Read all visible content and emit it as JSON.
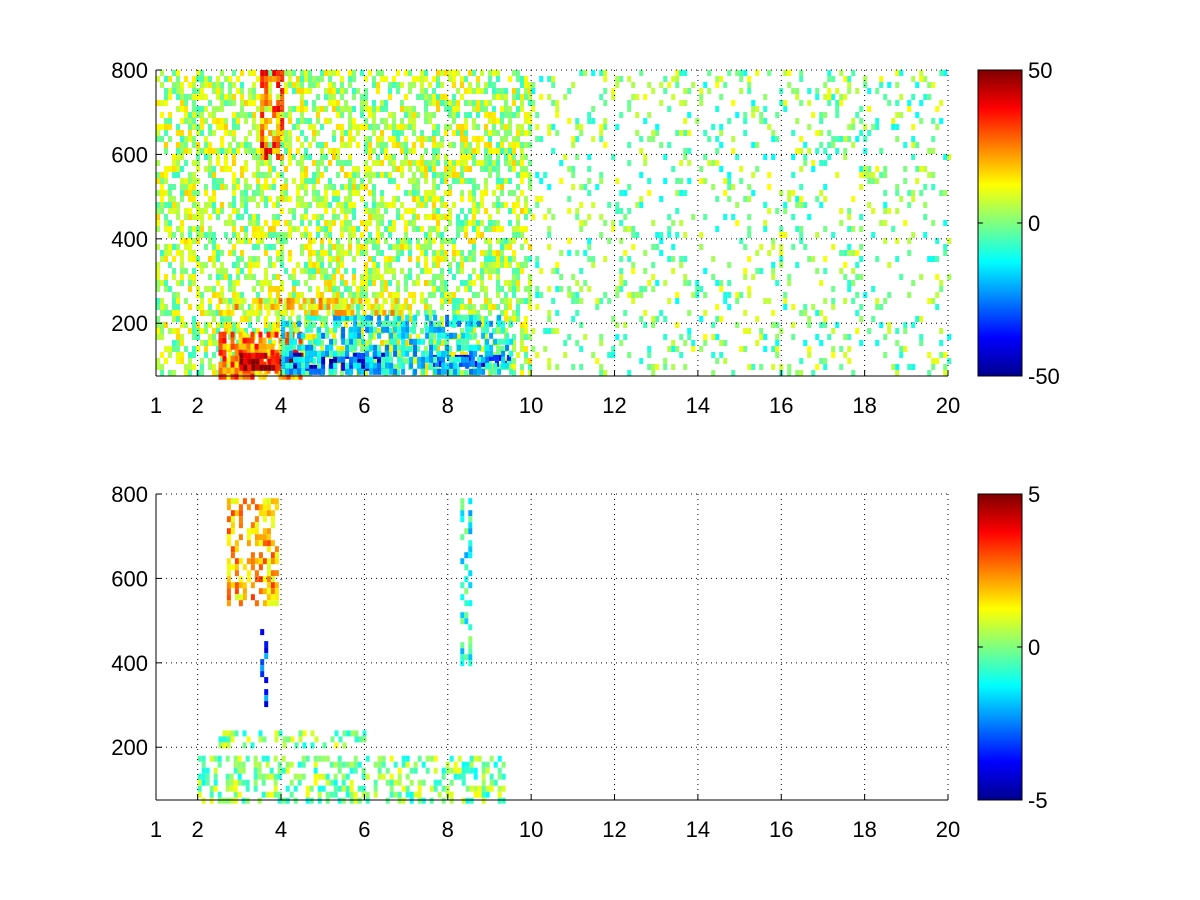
{
  "chart_data": [
    {
      "type": "heatmap",
      "title": "",
      "xlabel": "",
      "ylabel": "",
      "x_scale": "linear",
      "xlim": [
        1,
        20
      ],
      "ylim": [
        75,
        800
      ],
      "x_ticks": [
        1,
        2,
        4,
        6,
        8,
        10,
        12,
        14,
        16,
        18,
        20
      ],
      "x_tick_labels": [
        "1",
        "2",
        "4",
        "6",
        "8",
        "10",
        "12",
        "14",
        "16",
        "18",
        "20"
      ],
      "y_ticks": [
        200,
        400,
        600,
        800
      ],
      "y_tick_labels": [
        "200",
        "400",
        "600",
        "800"
      ],
      "grid": true,
      "colormap": "jet",
      "colorbar": {
        "range": [
          -50,
          50
        ],
        "ticks": [
          -50,
          0,
          50
        ],
        "tick_labels": [
          "-50",
          "0",
          "50"
        ]
      },
      "features": [
        {
          "x": [
            1,
            10
          ],
          "y": [
            75,
            800
          ],
          "value": 5,
          "density": 0.55
        },
        {
          "x": [
            2.5,
            4.5
          ],
          "y": [
            80,
            180
          ],
          "value": 25,
          "density": 0.8
        },
        {
          "x": [
            3,
            4.5
          ],
          "y": [
            95,
            130
          ],
          "value": 45,
          "density": 0.9
        },
        {
          "x": [
            4,
            6.5
          ],
          "y": [
            100,
            130
          ],
          "value": -40,
          "density": 0.7
        },
        {
          "x": [
            7.5,
            9.5
          ],
          "y": [
            100,
            125
          ],
          "value": -35,
          "density": 0.7
        },
        {
          "x": [
            4,
            9.5
          ],
          "y": [
            80,
            220
          ],
          "value": -15,
          "density": 0.55
        },
        {
          "x": [
            2.5,
            7
          ],
          "y": [
            220,
            260
          ],
          "value": 15,
          "density": 0.6
        },
        {
          "x": [
            3.5,
            4
          ],
          "y": [
            600,
            800
          ],
          "value": 30,
          "density": 0.6
        },
        {
          "x": [
            10,
            20
          ],
          "y": [
            75,
            800
          ],
          "value": 0,
          "density": 0.18
        }
      ]
    },
    {
      "type": "heatmap",
      "title": "",
      "xlabel": "",
      "ylabel": "",
      "x_scale": "linear",
      "xlim": [
        1,
        20
      ],
      "ylim": [
        75,
        800
      ],
      "x_ticks": [
        1,
        2,
        4,
        6,
        8,
        10,
        12,
        14,
        16,
        18,
        20
      ],
      "x_tick_labels": [
        "1",
        "2",
        "4",
        "6",
        "8",
        "10",
        "12",
        "14",
        "16",
        "18",
        "20"
      ],
      "y_ticks": [
        200,
        400,
        600,
        800
      ],
      "y_tick_labels": [
        "200",
        "400",
        "600",
        "800"
      ],
      "grid": true,
      "colormap": "jet",
      "colorbar": {
        "range": [
          -5,
          5
        ],
        "ticks": [
          -5,
          0,
          5
        ],
        "tick_labels": [
          "-5",
          "0",
          "5"
        ]
      },
      "features": [
        {
          "x": [
            2,
            9.3
          ],
          "y": [
            80,
            180
          ],
          "value": 0,
          "density": 0.45
        },
        {
          "x": [
            2.5,
            6
          ],
          "y": [
            210,
            240
          ],
          "value": 0,
          "density": 0.45
        },
        {
          "x": [
            2.7,
            3.9
          ],
          "y": [
            540,
            790
          ],
          "value": 2,
          "density": 0.5
        },
        {
          "x": [
            3.5,
            3.6
          ],
          "y": [
            300,
            480
          ],
          "value": -3,
          "density": 0.5
        },
        {
          "x": [
            8.3,
            8.5
          ],
          "y": [
            400,
            790
          ],
          "value": -1,
          "density": 0.5
        }
      ]
    }
  ]
}
